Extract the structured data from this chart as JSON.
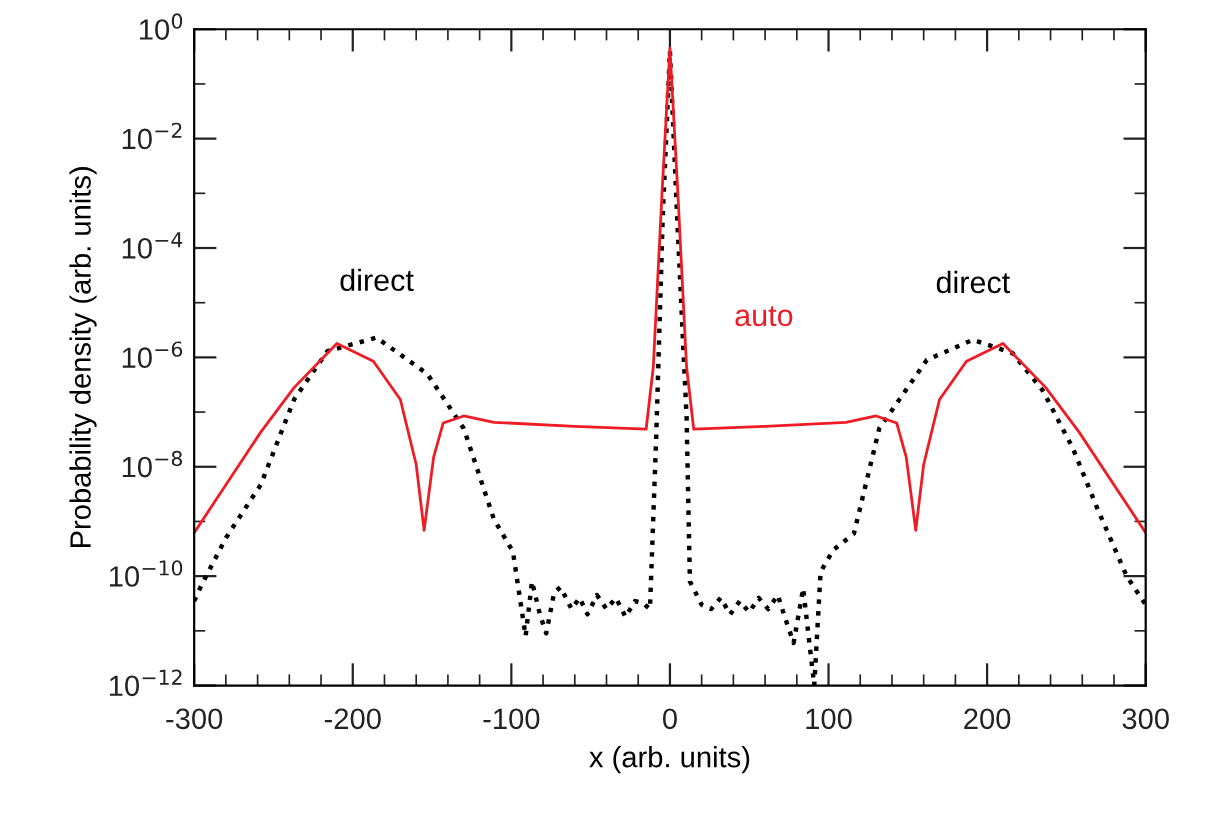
{
  "chart_data": {
    "type": "line",
    "xlabel": "x (arb. units)",
    "ylabel": "Probability density (arb. units)",
    "log": "y",
    "xlim": [
      -300,
      300
    ],
    "ylim": [
      1e-12,
      1
    ],
    "xticks": [
      -300,
      {
        "value": -280,
        "label": null
      },
      {
        "value": -260,
        "label": null
      },
      {
        "value": -240,
        "label": null
      },
      {
        "value": -220,
        "label": null
      },
      -200,
      {
        "value": -180,
        "label": null
      },
      {
        "value": -160,
        "label": null
      },
      {
        "value": -140,
        "label": null
      },
      {
        "value": -120,
        "label": null
      },
      -100,
      {
        "value": -80,
        "label": null
      },
      {
        "value": -60,
        "label": null
      },
      {
        "value": -40,
        "label": null
      },
      {
        "value": -20,
        "label": null
      },
      0,
      {
        "value": 20,
        "label": null
      },
      {
        "value": 40,
        "label": null
      },
      {
        "value": 60,
        "label": null
      },
      {
        "value": 80,
        "label": null
      },
      100,
      {
        "value": 120,
        "label": null
      },
      {
        "value": 140,
        "label": null
      },
      {
        "value": 160,
        "label": null
      },
      {
        "value": 180,
        "label": null
      },
      200,
      {
        "value": 220,
        "label": null
      },
      {
        "value": 240,
        "label": null
      },
      {
        "value": 260,
        "label": null
      },
      {
        "value": 280,
        "label": null
      },
      300
    ],
    "yticks": [
      {
        "value": 1e-12,
        "label": "10$^{−12}$"
      },
      {
        "value": 1e-11,
        "label": null
      },
      {
        "value": 1e-10,
        "label": "10$^{−10}$"
      },
      {
        "value": 1e-09,
        "label": null
      },
      {
        "value": 1e-08,
        "label": "10$^{−8}$"
      },
      {
        "value": 1e-07,
        "label": null
      },
      {
        "value": 1e-06,
        "label": "10$^{−6}$"
      },
      {
        "value": 1e-05,
        "label": null
      },
      {
        "value": 0.0001,
        "label": "10$^{−4}$"
      },
      {
        "value": 0.001,
        "label": null
      },
      {
        "value": 0.01,
        "label": "10$^{−2}$"
      },
      {
        "value": 0.1,
        "label": null
      },
      {
        "value": 1,
        "label": "10$^{0}$"
      }
    ],
    "grid": false,
    "legend": false,
    "marker": "none",
    "series": [
      {
        "name": "direct",
        "color": "#000000",
        "line_style": "dotted",
        "x": [
          -300,
          -296,
          -280,
          -258,
          -237,
          -216,
          -185,
          -153,
          -130,
          -111,
          -99,
          -91,
          -87,
          -82,
          -78,
          -73,
          -69,
          -62,
          -57,
          -52,
          -46,
          -40,
          -34,
          -28,
          -22,
          -17,
          -12.6,
          -8.7,
          -4.5,
          0,
          4.5,
          10.5,
          12.6,
          20,
          26,
          32,
          38,
          44,
          50,
          56,
          62,
          68,
          73,
          78,
          84,
          91,
          95,
          103,
          116,
          132,
          162,
          191,
          216,
          235,
          254,
          270,
          288,
          300
        ],
        "values": [
          3.5e-11,
          6.3e-11,
          5e-10,
          4.7e-09,
          1.7e-07,
          1.3e-06,
          2.3e-06,
          5e-07,
          5e-08,
          1.1e-09,
          2.8e-10,
          8e-12,
          8e-11,
          2e-11,
          9e-12,
          5e-11,
          6.3e-11,
          2.5e-11,
          4e-11,
          2e-11,
          4.5e-11,
          2.5e-11,
          4e-11,
          1.8e-11,
          3.5e-11,
          3.2e-11,
          2.5e-11,
          3.2e-08,
          0.0004,
          0.4,
          0.0004,
          8e-08,
          8e-11,
          3e-11,
          2.5e-11,
          4e-11,
          2e-11,
          3.5e-11,
          2.2e-11,
          4e-11,
          2.5e-11,
          4.5e-11,
          1.6e-11,
          6e-12,
          6e-11,
          1e-12,
          1.2e-10,
          3e-10,
          6e-10,
          5e-08,
          9e-07,
          2.1e-06,
          1.2e-06,
          2.5e-07,
          2.2e-08,
          1.6e-09,
          1e-10,
          3e-11
        ]
      },
      {
        "name": "auto",
        "color": "#ee1c24",
        "line_style": "solid",
        "x": [
          -300,
          -258,
          -237,
          -210,
          -187,
          -170,
          -160,
          -155,
          -149,
          -143,
          -130,
          -111,
          -60,
          -15,
          -10.5,
          -5,
          0,
          5,
          10.5,
          15,
          60,
          111,
          130,
          143,
          149,
          155,
          160,
          170,
          187,
          210,
          237,
          258,
          300
        ],
        "values": [
          6.2e-10,
          4.3e-08,
          2.8e-07,
          1.8e-06,
          8.5e-07,
          1.7e-07,
          1.1e-08,
          6.9e-10,
          1.5e-08,
          6.3e-08,
          8.5e-08,
          6.5e-08,
          5.5e-08,
          4.9e-08,
          6.6e-07,
          0.001,
          0.45,
          0.001,
          6.6e-07,
          4.9e-08,
          5.5e-08,
          6.5e-08,
          8.5e-08,
          6.3e-08,
          1.5e-08,
          6.9e-10,
          1.1e-08,
          1.7e-07,
          8.5e-07,
          1.8e-06,
          2.8e-07,
          4.3e-08,
          6.2e-10
        ]
      }
    ]
  }
}
